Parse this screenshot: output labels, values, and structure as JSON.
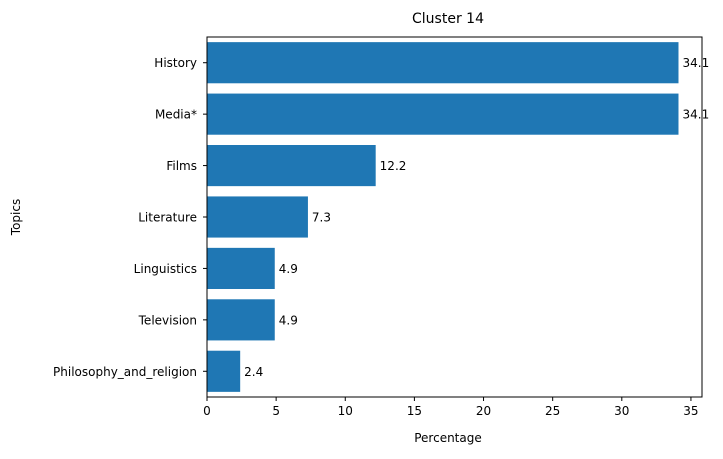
{
  "chart_data": {
    "type": "bar",
    "orientation": "horizontal",
    "title": "Cluster 14",
    "xlabel": "Percentage",
    "ylabel": "Topics",
    "categories": [
      "History",
      "Media*",
      "Films",
      "Literature",
      "Linguistics",
      "Television",
      "Philosophy_and_religion"
    ],
    "values": [
      34.1,
      34.1,
      12.2,
      7.3,
      4.9,
      4.9,
      2.4
    ],
    "data_labels": [
      "34.1",
      "34.1",
      "12.2",
      "7.3",
      "4.9",
      "4.9",
      "2.4"
    ],
    "xlim": [
      0,
      35.8
    ],
    "xticks": [
      0,
      5,
      10,
      15,
      20,
      25,
      30,
      35
    ],
    "grid": false,
    "legend": "none",
    "bar_color": "#1f77b4"
  }
}
